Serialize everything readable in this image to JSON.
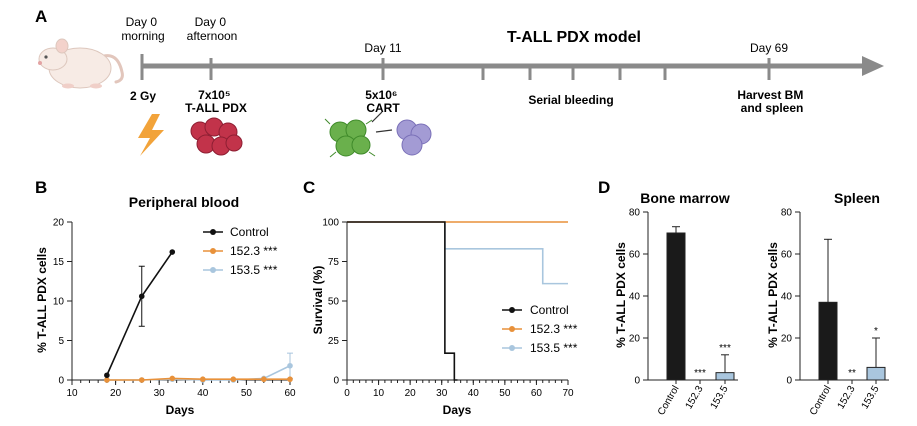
{
  "panel_labels": {
    "a": "A",
    "b": "B",
    "c": "C",
    "d": "D"
  },
  "timeline": {
    "title": "T-ALL PDX model",
    "steps": {
      "d0m": {
        "time": [
          "Day 0",
          "morning"
        ],
        "label": [
          "2 Gy"
        ]
      },
      "d0a": {
        "time": [
          "Day 0",
          "afternoon"
        ],
        "label": [
          "7x10⁵",
          "T-ALL PDX"
        ]
      },
      "d11": {
        "time": [
          "Day 11"
        ],
        "label": [
          "5x10⁶",
          "CART"
        ]
      },
      "bleed": {
        "label": [
          "Serial bleeding"
        ]
      },
      "d69": {
        "time": [
          "Day 69"
        ],
        "label": [
          "Harvest BM",
          "and spleen"
        ]
      }
    },
    "colors": {
      "arrow": "#8a8a8a",
      "lightning": "#f2a33a",
      "pdx": "#c2334a",
      "cart_active": "#6ab04c",
      "cart_rest": "#a39bd4"
    }
  },
  "chart_data": [
    {
      "id": "pb",
      "type": "line",
      "title": "Peripheral blood",
      "xlabel": "Days",
      "ylabel": "% T-ALL PDX cells",
      "xlim": [
        10,
        60
      ],
      "ylim": [
        0,
        20
      ],
      "xticks": [
        10,
        20,
        30,
        40,
        50,
        60
      ],
      "yticks": [
        0,
        5,
        10,
        15,
        20
      ],
      "series": [
        {
          "name": "Control",
          "sig": "",
          "color": "#111111",
          "points": [
            [
              18,
              0.6,
              0
            ],
            [
              26,
              10.6,
              3.8
            ],
            [
              33,
              16.2,
              0
            ]
          ]
        },
        {
          "name": "152.3",
          "sig": "***",
          "color": "#e8913a",
          "points": [
            [
              18,
              0,
              0
            ],
            [
              26,
              0,
              0
            ],
            [
              33,
              0.2,
              0
            ],
            [
              40,
              0.1,
              0
            ],
            [
              47,
              0.1,
              0
            ],
            [
              54,
              0.1,
              0
            ],
            [
              60,
              0.1,
              0
            ]
          ]
        },
        {
          "name": "153.5",
          "sig": "***",
          "color": "#a9c6de",
          "points": [
            [
              18,
              0,
              0
            ],
            [
              26,
              0,
              0
            ],
            [
              33,
              0.1,
              0
            ],
            [
              40,
              0,
              0
            ],
            [
              47,
              0,
              0
            ],
            [
              54,
              0.2,
              0
            ],
            [
              60,
              1.8,
              1.6
            ]
          ]
        }
      ]
    },
    {
      "id": "surv",
      "type": "line",
      "title": "",
      "xlabel": "Days",
      "ylabel": "Survival (%)",
      "xlim": [
        0,
        70
      ],
      "ylim": [
        0,
        100
      ],
      "xticks": [
        0,
        10,
        20,
        30,
        40,
        50,
        60,
        70
      ],
      "yticks": [
        0,
        25,
        50,
        75,
        100
      ],
      "series": [
        {
          "name": "Control",
          "sig": "",
          "color": "#111111",
          "steps": [
            [
              0,
              100
            ],
            [
              31,
              100
            ],
            [
              31,
              17
            ],
            [
              34,
              17
            ],
            [
              34,
              0
            ],
            [
              35,
              0
            ]
          ]
        },
        {
          "name": "152.3",
          "sig": "***",
          "color": "#e8913a",
          "steps": [
            [
              0,
              100
            ],
            [
              70,
              100
            ]
          ]
        },
        {
          "name": "153.5",
          "sig": "***",
          "color": "#a9c6de",
          "steps": [
            [
              31,
              100
            ],
            [
              31,
              83
            ],
            [
              62,
              83
            ],
            [
              62,
              61
            ],
            [
              70,
              61
            ]
          ]
        }
      ]
    },
    {
      "id": "bm",
      "type": "bar",
      "title": "Bone marrow",
      "ylabel": "% T-ALL PDX cells",
      "ylim": [
        0,
        80
      ],
      "yticks": [
        0,
        20,
        40,
        60,
        80
      ],
      "categories": [
        "Control",
        "152.3",
        "153.5"
      ],
      "values": [
        70,
        0,
        3.5
      ],
      "errors": [
        3,
        0,
        8.5
      ],
      "sig": [
        "",
        "***",
        "***"
      ],
      "colors": [
        "#1a1a1a",
        "#e8913a",
        "#a9c6de"
      ]
    },
    {
      "id": "sp",
      "type": "bar",
      "title": "Spleen",
      "ylabel": "% T-ALL PDX cells",
      "ylim": [
        0,
        80
      ],
      "yticks": [
        0,
        20,
        40,
        60,
        80
      ],
      "categories": [
        "Control",
        "152.3",
        "153.5"
      ],
      "values": [
        37,
        0,
        6
      ],
      "errors": [
        30,
        0,
        14
      ],
      "sig": [
        "",
        "**",
        "*"
      ],
      "colors": [
        "#1a1a1a",
        "#e8913a",
        "#a9c6de"
      ]
    }
  ]
}
